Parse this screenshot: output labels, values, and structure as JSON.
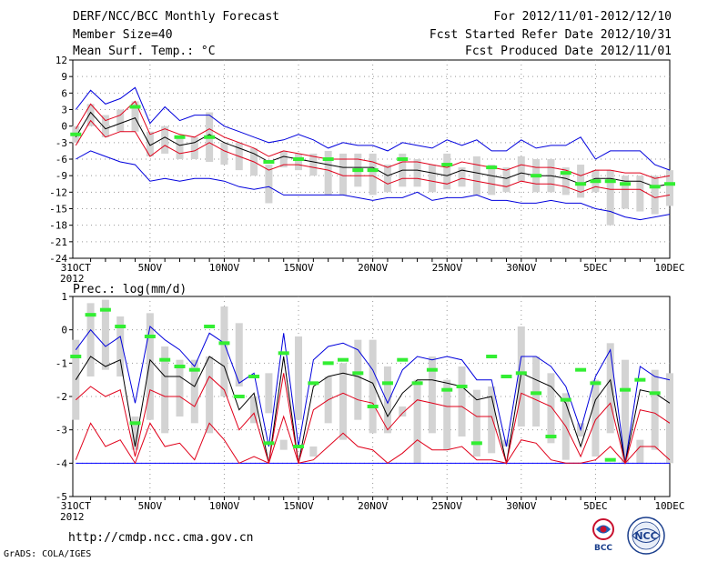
{
  "header": {
    "title": "DERF/NCC/BCC Monthly Forecast",
    "member_size": "Member Size=40",
    "variable": "Mean Surf. Temp.: °C",
    "period": "For 2012/11/01-2012/12/10",
    "started": "Fcst Started Refer Date 2012/10/31",
    "produced": "Fcst Produced Date 2012/11/01"
  },
  "footer": {
    "url": "http://cmdp.ncc.cma.gov.cn",
    "credit": "GrADS: COLA/IGES",
    "logo_bcc": "BCC",
    "logo_ncc": "NCC"
  },
  "colors": {
    "bar": "#d3d3d3",
    "median": "#000000",
    "inner": "#e0001a",
    "outer": "#0000dd",
    "obs": "#33ee33",
    "floor": "#0000ff",
    "grid": "#999999"
  },
  "chart_data": [
    {
      "id": "temp",
      "type": "line",
      "title": "Mean Surf. Temp.: °C",
      "x": [
        31,
        32,
        33,
        34,
        35,
        36,
        37,
        38,
        39,
        40,
        41,
        42,
        43,
        44,
        45,
        46,
        47,
        48,
        49,
        50,
        51,
        52,
        53,
        54,
        55,
        56,
        57,
        58,
        59,
        60,
        61,
        62,
        63,
        64,
        65,
        66,
        67,
        68,
        69,
        70,
        71
      ],
      "xlim": [
        30.8,
        71
      ],
      "ylim": [
        -24,
        12
      ],
      "yticks": [
        12,
        9,
        6,
        3,
        0,
        -3,
        -6,
        -9,
        -12,
        -15,
        -18,
        -21,
        -24
      ],
      "ytick_labels": [
        "12",
        "9",
        "6",
        "3",
        "0",
        "-3",
        "-6",
        "-9",
        "-12",
        "-15",
        "-18",
        "-21",
        "-24"
      ],
      "xtick_days": [
        31,
        36,
        41,
        46,
        51,
        56,
        61,
        66,
        71
      ],
      "xtick_labels": [
        "31OCT",
        "5NOV",
        "10NOV",
        "15NOV",
        "20NOV",
        "25NOV",
        "30NOV",
        "5DEC",
        "10DEC"
      ],
      "xtick_sub": "2012",
      "series": [
        {
          "name": "max",
          "style": "outer",
          "values": [
            3,
            6.5,
            4,
            5,
            7,
            0.5,
            3.5,
            1,
            2,
            2,
            0,
            -1,
            -2,
            -3,
            -2.5,
            -1.5,
            -2.5,
            -4,
            -3,
            -3.5,
            -3.5,
            -4.5,
            -3,
            -3.5,
            -4,
            -2.5,
            -3.5,
            -2.5,
            -4.5,
            -4.5,
            -2.5,
            -4,
            -3.5,
            -3.5,
            -2,
            -6,
            -4.5,
            -4.5,
            -4.5,
            -7,
            -8
          ]
        },
        {
          "name": "inner_high",
          "style": "inner",
          "values": [
            -0.5,
            4,
            1,
            2,
            4.5,
            -1.5,
            -0.5,
            -1.5,
            -2,
            -0.5,
            -2,
            -3,
            -4,
            -5.5,
            -4.5,
            -5,
            -5.5,
            -6,
            -6,
            -6,
            -6.5,
            -7.5,
            -6.5,
            -6.5,
            -7,
            -7.5,
            -6.5,
            -7,
            -7.5,
            -8,
            -7,
            -7.5,
            -7.5,
            -8,
            -9,
            -8,
            -8,
            -8.5,
            -8.5,
            -9.5,
            -9
          ]
        },
        {
          "name": "median",
          "style": "median",
          "values": [
            -2,
            2.5,
            -0.5,
            0.5,
            1.5,
            -3.5,
            -2,
            -3.5,
            -3,
            -1.5,
            -3,
            -4,
            -5,
            -6.5,
            -5.5,
            -6,
            -6.5,
            -7,
            -7.5,
            -7.5,
            -7.5,
            -9,
            -8,
            -8,
            -8.5,
            -9,
            -8,
            -8.5,
            -9,
            -9.5,
            -8.5,
            -9,
            -9,
            -9.5,
            -10.5,
            -9.5,
            -9.5,
            -10,
            -10,
            -11,
            -10.5
          ]
        },
        {
          "name": "inner_low",
          "style": "inner",
          "values": [
            -3.5,
            1,
            -2,
            -1,
            -1,
            -5.5,
            -3.5,
            -5,
            -4.5,
            -3,
            -4.5,
            -5.5,
            -6.5,
            -8,
            -7,
            -7,
            -7.5,
            -8,
            -9,
            -9,
            -9,
            -10.5,
            -9.5,
            -9.5,
            -10,
            -10.5,
            -9.5,
            -10,
            -10.5,
            -11,
            -10,
            -10.5,
            -10.5,
            -11,
            -12,
            -11,
            -11.5,
            -11.5,
            -11.5,
            -13,
            -12.5
          ]
        },
        {
          "name": "min",
          "style": "outer",
          "values": [
            -6,
            -4.5,
            -5.5,
            -6.5,
            -7,
            -10,
            -9.5,
            -10,
            -9.5,
            -9.5,
            -10,
            -11,
            -11.5,
            -11,
            -12.5,
            -12.5,
            -12.5,
            -12.5,
            -12.5,
            -13,
            -13.5,
            -13,
            -13,
            -12,
            -13.5,
            -13,
            -13,
            -12.5,
            -13.5,
            -13.5,
            -14,
            -14,
            -13.5,
            -14,
            -14,
            -15,
            -15.5,
            -16.5,
            -17,
            -16.5,
            -16
          ]
        }
      ],
      "ranges": [
        [
          -3,
          0
        ],
        [
          0,
          4
        ],
        [
          -2,
          2
        ],
        [
          -1,
          3
        ],
        [
          -1,
          4.5
        ],
        [
          -5.5,
          -1
        ],
        [
          -5,
          0
        ],
        [
          -6,
          -2
        ],
        [
          -6,
          -2
        ],
        [
          -6.5,
          2.5
        ],
        [
          -7,
          -3
        ],
        [
          -8,
          -3
        ],
        [
          -9,
          -4
        ],
        [
          -14,
          -7
        ],
        [
          -7.5,
          -4.5
        ],
        [
          -8,
          -5
        ],
        [
          -9,
          -5
        ],
        [
          -12.5,
          -4.5
        ],
        [
          -12.5,
          -5
        ],
        [
          -11,
          -5
        ],
        [
          -12.5,
          -5
        ],
        [
          -12,
          -7
        ],
        [
          -11,
          -5
        ],
        [
          -11,
          -6
        ],
        [
          -12,
          -7
        ],
        [
          -11.5,
          -5
        ],
        [
          -11,
          -7.5
        ],
        [
          -12.5,
          -5.5
        ],
        [
          -12.5,
          -7
        ],
        [
          -12,
          -7.5
        ],
        [
          -10,
          -5.5
        ],
        [
          -12,
          -6
        ],
        [
          -12,
          -6
        ],
        [
          -12.5,
          -7.5
        ],
        [
          -13,
          -7
        ],
        [
          -12,
          -8
        ],
        [
          -18,
          -8
        ],
        [
          -15,
          -9
        ],
        [
          -15.5,
          -9
        ],
        [
          -16,
          -9
        ],
        [
          -14.5,
          -8
        ]
      ],
      "observed": [
        [
          31,
          -1.5
        ],
        [
          35,
          3.5
        ],
        [
          38,
          -2
        ],
        [
          40,
          -2
        ],
        [
          44,
          -6.5
        ],
        [
          46,
          -6
        ],
        [
          48,
          -6
        ],
        [
          50,
          -8
        ],
        [
          51,
          -8
        ],
        [
          53,
          -6
        ],
        [
          56,
          -7
        ],
        [
          59,
          -7.5
        ],
        [
          62,
          -9
        ],
        [
          64,
          -8.5
        ],
        [
          65,
          -10.5
        ],
        [
          66,
          -10
        ],
        [
          67,
          -10
        ],
        [
          68,
          -10.5
        ],
        [
          70,
          -11
        ],
        [
          71,
          -10.5
        ]
      ]
    },
    {
      "id": "prec",
      "type": "line",
      "title": "Prec.: log(mm/d)",
      "x": [
        31,
        32,
        33,
        34,
        35,
        36,
        37,
        38,
        39,
        40,
        41,
        42,
        43,
        44,
        45,
        46,
        47,
        48,
        49,
        50,
        51,
        52,
        53,
        54,
        55,
        56,
        57,
        58,
        59,
        60,
        61,
        62,
        63,
        64,
        65,
        66,
        67,
        68,
        69,
        70,
        71
      ],
      "xlim": [
        30.8,
        71
      ],
      "ylim": [
        -5,
        1
      ],
      "yticks": [
        1,
        0,
        -1,
        -2,
        -3,
        -4,
        -5
      ],
      "ytick_labels": [
        "1",
        "0",
        "-1",
        "-2",
        "-3",
        "-4",
        "-5"
      ],
      "xtick_days": [
        31,
        36,
        41,
        46,
        51,
        56,
        61,
        66,
        71
      ],
      "xtick_labels": [
        "31OCT",
        "5NOV",
        "10NOV",
        "15NOV",
        "20NOV",
        "25NOV",
        "30NOV",
        "5DEC",
        "10DEC"
      ],
      "xtick_sub": "2012",
      "series": [
        {
          "name": "max",
          "style": "outer",
          "values": [
            -0.6,
            0,
            -0.5,
            -0.2,
            -2.2,
            0.1,
            -0.3,
            -0.6,
            -1.1,
            -0.1,
            -0.4,
            -1.6,
            -1.3,
            -3.5,
            -0.1,
            -3.5,
            -0.9,
            -0.5,
            -0.4,
            -0.6,
            -1.2,
            -2.2,
            -1.2,
            -0.8,
            -0.9,
            -0.8,
            -0.9,
            -1.5,
            -1.5,
            -3.5,
            -0.8,
            -0.8,
            -1.1,
            -1.7,
            -3,
            -1.4,
            -0.6,
            -4,
            -1.1,
            -1.4,
            -1.5
          ]
        },
        {
          "name": "median",
          "style": "median",
          "values": [
            -1.5,
            -0.8,
            -1.1,
            -0.9,
            -3.5,
            -0.9,
            -1.4,
            -1.4,
            -1.7,
            -0.8,
            -1.1,
            -2.4,
            -1.9,
            -4,
            -0.8,
            -4,
            -1.7,
            -1.4,
            -1.3,
            -1.4,
            -1.6,
            -2.6,
            -1.9,
            -1.5,
            -1.5,
            -1.6,
            -1.7,
            -2.1,
            -2,
            -4,
            -1.3,
            -1.5,
            -1.7,
            -2.2,
            -3.5,
            -2.1,
            -1.5,
            -4,
            -1.8,
            -1.9,
            -2.2
          ]
        },
        {
          "name": "inner_high",
          "style": "inner",
          "values": [
            -2.1,
            -1.7,
            -2,
            -1.8,
            -3.8,
            -1.8,
            -2,
            -2,
            -2.3,
            -1.4,
            -1.8,
            -3,
            -2.5,
            -4,
            -1.3,
            -4,
            -2.4,
            -2.1,
            -1.9,
            -2.1,
            -2.2,
            -3,
            -2.5,
            -2.1,
            -2.2,
            -2.3,
            -2.3,
            -2.6,
            -2.6,
            -4,
            -1.9,
            -2.1,
            -2.3,
            -2.9,
            -3.8,
            -2.7,
            -2.2,
            -4,
            -2.4,
            -2.5,
            -2.8
          ]
        },
        {
          "name": "inner_low",
          "style": "inner",
          "values": [
            -3.9,
            -2.8,
            -3.5,
            -3.3,
            -4,
            -2.8,
            -3.5,
            -3.4,
            -3.9,
            -2.8,
            -3.3,
            -4,
            -3.8,
            -4,
            -2.6,
            -4,
            -3.9,
            -3.5,
            -3.1,
            -3.5,
            -3.6,
            -4,
            -3.7,
            -3.3,
            -3.6,
            -3.6,
            -3.5,
            -3.9,
            -3.9,
            -4,
            -3.3,
            -3.4,
            -3.9,
            -4,
            -4,
            -3.9,
            -3.5,
            -4,
            -3.5,
            -3.5,
            -3.9
          ]
        }
      ],
      "floor": -4,
      "ranges": [
        [
          -2.7,
          -0.3
        ],
        [
          -1.4,
          0.8
        ],
        [
          -1.2,
          0.9
        ],
        [
          -1.4,
          0.4
        ],
        [
          -3.6,
          -2.6
        ],
        [
          -2.7,
          0.5
        ],
        [
          -3.1,
          -0.5
        ],
        [
          -2.6,
          -0.9
        ],
        [
          -2.8,
          -0.9
        ],
        [
          -3.1,
          -0.8
        ],
        [
          -2,
          0.7
        ],
        [
          -1.7,
          0.2
        ],
        [
          -2.8,
          -2
        ],
        [
          -2.5,
          -1.3
        ],
        [
          -3.6,
          -3.3
        ],
        [
          -2.7,
          -0.2
        ],
        [
          -3.8,
          -3.5
        ],
        [
          -2.8,
          -1.4
        ],
        [
          -3.3,
          -1
        ],
        [
          -2.7,
          -0.3
        ],
        [
          -3.1,
          -0.3
        ],
        [
          -3.1,
          -1.1
        ],
        [
          -2.6,
          -2.3
        ],
        [
          -4,
          -1.5
        ],
        [
          -3.1,
          -0.8
        ],
        [
          -3.6,
          -1.5
        ],
        [
          -3.2,
          -1.1
        ],
        [
          -3.8,
          -1.8
        ],
        [
          -3.7,
          -1.7
        ],
        [
          -3.5,
          -3.3
        ],
        [
          -2.9,
          0.1
        ],
        [
          -2.9,
          -0.8
        ],
        [
          -3.4,
          -1.3
        ],
        [
          -3.9,
          -1.9
        ],
        [
          -3.2,
          -2.8
        ],
        [
          -3.8,
          -1.5
        ],
        [
          -3.1,
          -0.4
        ],
        [
          -4,
          -0.9
        ],
        [
          -4,
          -3.3
        ],
        [
          -3.6,
          -1.2
        ],
        [
          -4,
          -1.3
        ]
      ],
      "observed": [
        [
          31,
          -0.8
        ],
        [
          32,
          0.45
        ],
        [
          33,
          0.6
        ],
        [
          34,
          0.1
        ],
        [
          35,
          -2.8
        ],
        [
          36,
          -0.2
        ],
        [
          37,
          -0.9
        ],
        [
          38,
          -1.1
        ],
        [
          39,
          -1.2
        ],
        [
          40,
          0.1
        ],
        [
          41,
          -0.4
        ],
        [
          42,
          -2
        ],
        [
          43,
          -1.4
        ],
        [
          44,
          -3.4
        ],
        [
          45,
          -0.7
        ],
        [
          46,
          -3.5
        ],
        [
          47,
          -1.6
        ],
        [
          48,
          -1
        ],
        [
          49,
          -0.9
        ],
        [
          50,
          -1.3
        ],
        [
          51,
          -2.3
        ],
        [
          52,
          -1.6
        ],
        [
          53,
          -0.9
        ],
        [
          54,
          -1.6
        ],
        [
          55,
          -1.2
        ],
        [
          56,
          -1.8
        ],
        [
          57,
          -1.7
        ],
        [
          58,
          -3.4
        ],
        [
          59,
          -0.8
        ],
        [
          60,
          -1.4
        ],
        [
          61,
          -1.3
        ],
        [
          62,
          -1.9
        ],
        [
          63,
          -3.2
        ],
        [
          64,
          -2.1
        ],
        [
          65,
          -1.2
        ],
        [
          66,
          -1.6
        ],
        [
          67,
          -3.9
        ],
        [
          68,
          -1.8
        ],
        [
          69,
          -1.5
        ],
        [
          70,
          -1.9
        ]
      ]
    }
  ]
}
